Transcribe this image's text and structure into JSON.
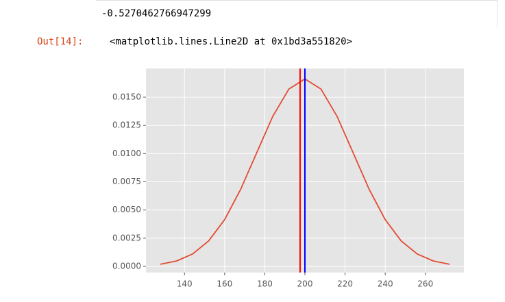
{
  "stdout": "-0.5270462766947299",
  "out_prompt": "Out[14]:",
  "out_text": "<matplotlib.lines.Line2D at 0x1bd3a551820>",
  "chart_data": {
    "type": "line",
    "x": [
      128,
      136,
      144,
      152,
      160,
      168,
      176,
      184,
      192,
      200,
      208,
      216,
      224,
      232,
      240,
      248,
      256,
      264,
      272
    ],
    "series": [
      {
        "color": "#e24a33",
        "values": [
          0.000185,
          0.000475,
          0.001093,
          0.00225,
          0.004146,
          0.006834,
          0.010082,
          0.01331,
          0.015725,
          0.016623,
          0.015725,
          0.01331,
          0.010082,
          0.006834,
          0.004146,
          0.00225,
          0.001093,
          0.000475,
          0.000185
        ]
      }
    ],
    "vlines": [
      {
        "x": 197.6,
        "color": "#ff0000"
      },
      {
        "x": 200,
        "color": "#0000ff"
      }
    ],
    "xlim": [
      120.8,
      279.2
    ],
    "ylim": [
      -0.00055,
      0.01755
    ],
    "xticks": [
      140,
      160,
      180,
      200,
      220,
      240,
      260
    ],
    "yticks": [
      {
        "value": 0,
        "label": "0.0000"
      },
      {
        "value": 0.0025,
        "label": "0.0025"
      },
      {
        "value": 0.005,
        "label": "0.0050"
      },
      {
        "value": 0.0075,
        "label": "0.0075"
      },
      {
        "value": 0.01,
        "label": "0.0100"
      },
      {
        "value": 0.0125,
        "label": "0.0125"
      },
      {
        "value": 0.015,
        "label": "0.0150"
      }
    ],
    "grid": true
  }
}
